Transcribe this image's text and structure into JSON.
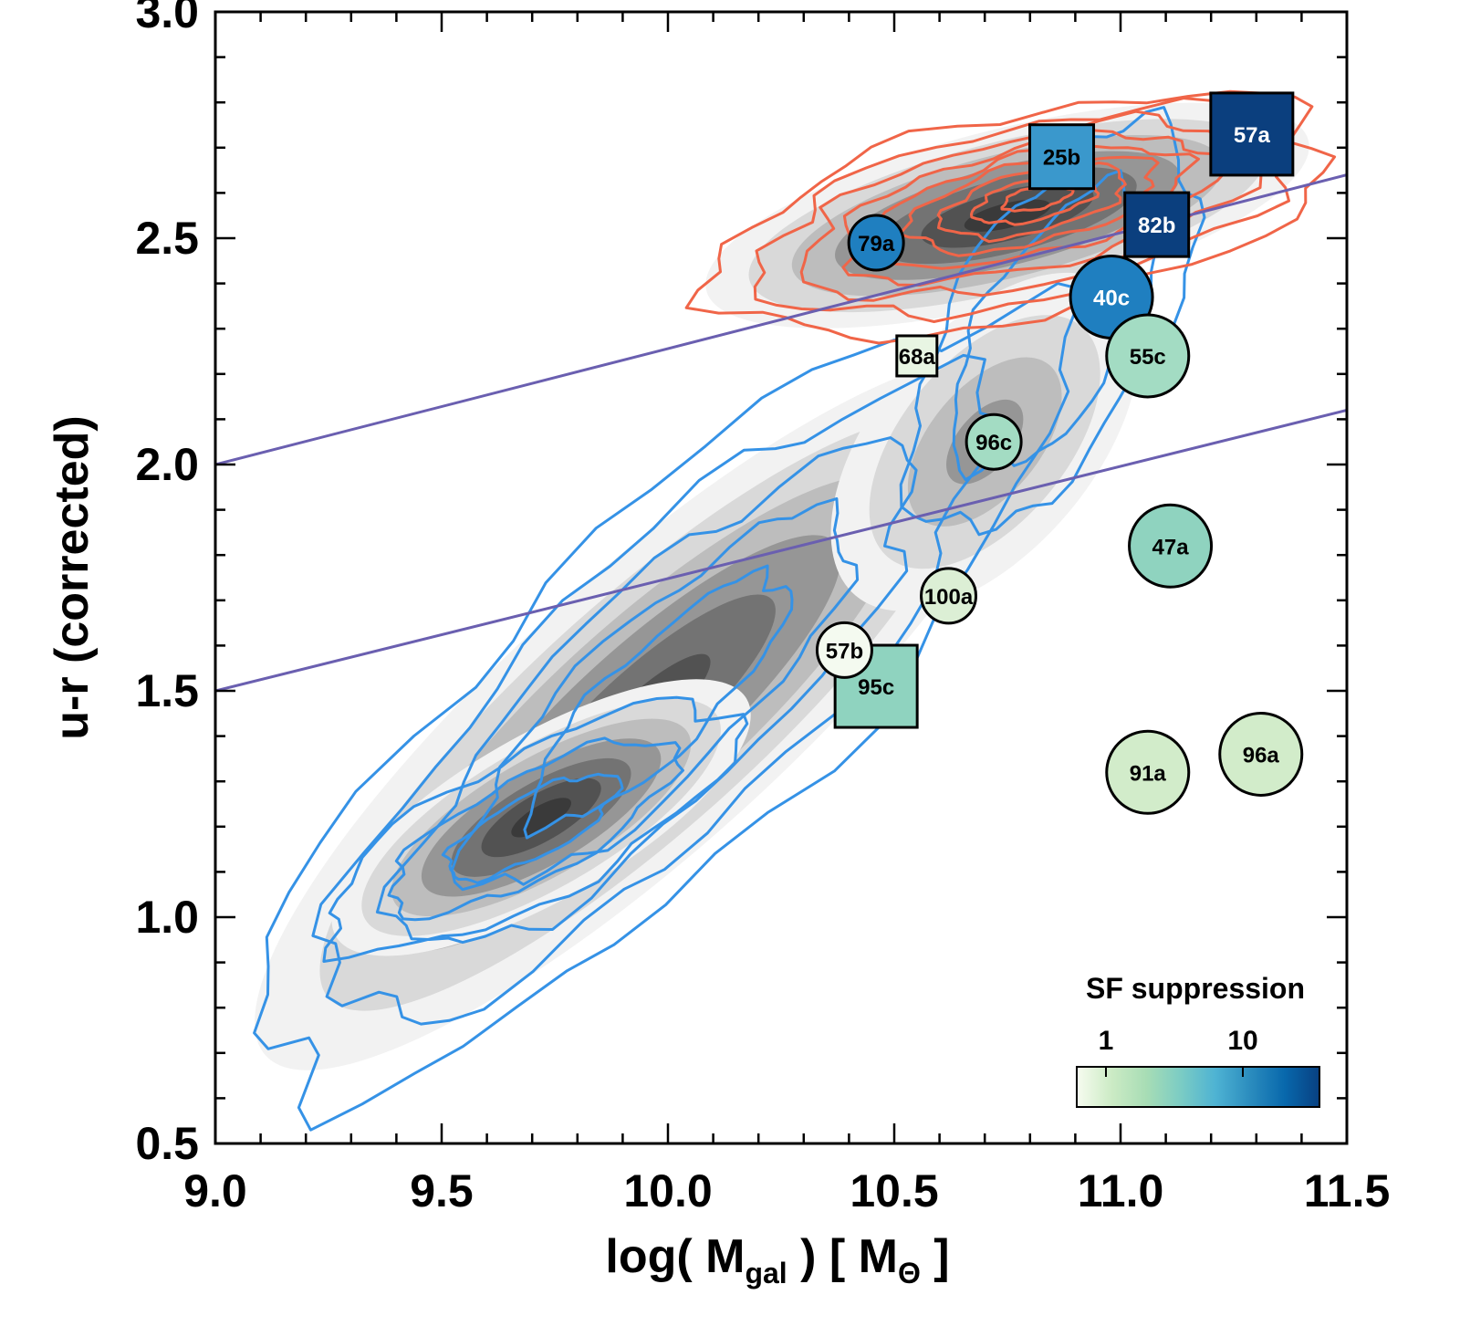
{
  "chart_data": {
    "type": "scatter",
    "title": "",
    "xlabel": "log( M_gal ) [ M_Θ ]",
    "xlabel_parts": {
      "main": "log( M",
      "sub": "gal",
      "mid": " ) [ M",
      "sub2": "Θ",
      "end": " ]"
    },
    "ylabel": "u-r (corrected)",
    "xlim": [
      9.0,
      11.5
    ],
    "ylim": [
      0.5,
      3.0
    ],
    "x_ticks": [
      "9.0",
      "9.5",
      "10.0",
      "10.5",
      "11.0",
      "11.5"
    ],
    "y_ticks": [
      "0.5",
      "1.0",
      "1.5",
      "2.0",
      "2.5",
      "3.0"
    ],
    "divider_lines": [
      {
        "name": "upper-divider",
        "x": [
          9.0,
          11.5
        ],
        "y": [
          2.0,
          2.64
        ]
      },
      {
        "name": "lower-divider",
        "x": [
          9.0,
          11.5
        ],
        "y": [
          1.5,
          2.12
        ]
      }
    ],
    "colorbar": {
      "title": "SF suppression",
      "tick_labels": [
        "1",
        "10"
      ],
      "colors": [
        "#f7fcf0",
        "#ccebc5",
        "#a8ddb5",
        "#7bccc4",
        "#4eb3d3",
        "#2b8cbe",
        "#0868ac",
        "#084081"
      ]
    },
    "density_colors": [
      "#f2f2f2",
      "#d9d9d9",
      "#bdbdbd",
      "#969696",
      "#737373",
      "#525252",
      "#3a3a3a"
    ],
    "contour_colors": {
      "red_sequence": "#f06548",
      "blue_cloud": "#3592e6"
    },
    "points": [
      {
        "label": "57a",
        "x": 11.29,
        "y": 2.73,
        "marker": "square",
        "size": "large",
        "color": "#0b3f7e",
        "text_color": "#ffffff"
      },
      {
        "label": "25b",
        "x": 10.87,
        "y": 2.68,
        "marker": "square",
        "size": "medium",
        "color": "#3a98cc",
        "text_color": "#000000"
      },
      {
        "label": "82b",
        "x": 11.08,
        "y": 2.53,
        "marker": "square",
        "size": "medium",
        "color": "#0b3f7e",
        "text_color": "#ffffff"
      },
      {
        "label": "68a",
        "x": 10.55,
        "y": 2.24,
        "marker": "square",
        "size": "small",
        "color": "#e8f5e3",
        "text_color": "#000000"
      },
      {
        "label": "95c",
        "x": 10.46,
        "y": 1.51,
        "marker": "square",
        "size": "large",
        "color": "#8fd3bf",
        "text_color": "#000000"
      },
      {
        "label": "79a",
        "x": 10.46,
        "y": 2.49,
        "marker": "circle",
        "size": "small",
        "color": "#1f7fc0",
        "text_color": "#000000"
      },
      {
        "label": "40c",
        "x": 10.98,
        "y": 2.37,
        "marker": "circle",
        "size": "large",
        "color": "#1f7fc0",
        "text_color": "#ffffff"
      },
      {
        "label": "55c",
        "x": 11.06,
        "y": 2.24,
        "marker": "circle",
        "size": "large",
        "color": "#a3dcc3",
        "text_color": "#000000"
      },
      {
        "label": "96c",
        "x": 10.72,
        "y": 2.05,
        "marker": "circle",
        "size": "small",
        "color": "#a3dcc3",
        "text_color": "#000000"
      },
      {
        "label": "47a",
        "x": 11.11,
        "y": 1.82,
        "marker": "circle",
        "size": "large",
        "color": "#8fd3bf",
        "text_color": "#000000"
      },
      {
        "label": "100a",
        "x": 10.62,
        "y": 1.71,
        "marker": "circle",
        "size": "small",
        "color": "#dcefd5",
        "text_color": "#000000"
      },
      {
        "label": "57b",
        "x": 10.39,
        "y": 1.59,
        "marker": "circle",
        "size": "small",
        "color": "#f4faf0",
        "text_color": "#000000"
      },
      {
        "label": "91a",
        "x": 11.06,
        "y": 1.32,
        "marker": "circle",
        "size": "large",
        "color": "#d2ecca",
        "text_color": "#000000"
      },
      {
        "label": "96a",
        "x": 11.31,
        "y": 1.36,
        "marker": "circle",
        "size": "large",
        "color": "#d2ecca",
        "text_color": "#000000"
      }
    ]
  }
}
